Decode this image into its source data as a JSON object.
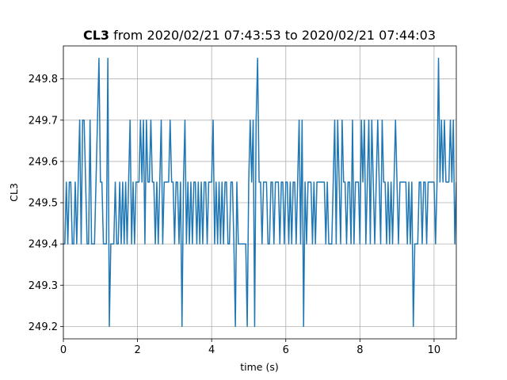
{
  "chart_data": {
    "type": "line",
    "title": {
      "bold": "CL3",
      "rest": " from 2020/02/21 07:43:53 to 2020/02/21 07:44:03"
    },
    "xlabel": "time (s)",
    "ylabel": "CL3",
    "xlim": [
      0,
      10.6
    ],
    "ylim": [
      249.17,
      249.88
    ],
    "xticks": [
      0,
      2,
      4,
      6,
      8,
      10
    ],
    "xtick_labels": [
      "0",
      "2",
      "4",
      "6",
      "8",
      "10"
    ],
    "yticks": [
      249.2,
      249.3,
      249.4,
      249.5,
      249.6,
      249.7,
      249.8
    ],
    "ytick_labels": [
      "249.2",
      "249.3",
      "249.4",
      "249.5",
      "249.6",
      "249.7",
      "249.8"
    ],
    "grid": true,
    "line_color": "#1f77b4",
    "series": [
      {
        "x": [
          0,
          0.04,
          0.08,
          0.12,
          0.16,
          0.2,
          0.24,
          0.28,
          0.32,
          0.36,
          0.4,
          0.44,
          0.48,
          0.52,
          0.56,
          0.6,
          0.64,
          0.68,
          0.72,
          0.76,
          0.8,
          0.84,
          0.88,
          0.92,
          0.96,
          1.0,
          1.04,
          1.08,
          1.12,
          1.16,
          1.2,
          1.24,
          1.28,
          1.32,
          1.36,
          1.4,
          1.44,
          1.48,
          1.52,
          1.56,
          1.6,
          1.64,
          1.68,
          1.72,
          1.76,
          1.8,
          1.84,
          1.88,
          1.92,
          1.96,
          2.0,
          2.04,
          2.08,
          2.12,
          2.16,
          2.2,
          2.24,
          2.28,
          2.32,
          2.36,
          2.4,
          2.44,
          2.48,
          2.52,
          2.56,
          2.6,
          2.64,
          2.68,
          2.72,
          2.76,
          2.8,
          2.84,
          2.88,
          2.92,
          2.96,
          3.0,
          3.04,
          3.08,
          3.12,
          3.16,
          3.2,
          3.24,
          3.28,
          3.32,
          3.36,
          3.4,
          3.44,
          3.48,
          3.52,
          3.56,
          3.6,
          3.64,
          3.68,
          3.72,
          3.76,
          3.8,
          3.84,
          3.88,
          3.92,
          3.96,
          4.0,
          4.04,
          4.08,
          4.12,
          4.16,
          4.2,
          4.24,
          4.28,
          4.32,
          4.36,
          4.4,
          4.44,
          4.48,
          4.52,
          4.56,
          4.6,
          4.64,
          4.68,
          4.72,
          4.76,
          4.8,
          4.84,
          4.88,
          4.92,
          4.96,
          5.0,
          5.04,
          5.08,
          5.12,
          5.16,
          5.2,
          5.24,
          5.28,
          5.32,
          5.36,
          5.4,
          5.44,
          5.48,
          5.52,
          5.56,
          5.6,
          5.64,
          5.68,
          5.72,
          5.76,
          5.8,
          5.84,
          5.88,
          5.92,
          5.96,
          6.0,
          6.04,
          6.08,
          6.12,
          6.16,
          6.2,
          6.24,
          6.28,
          6.32,
          6.36,
          6.4,
          6.44,
          6.48,
          6.52,
          6.56,
          6.6,
          6.64,
          6.68,
          6.72,
          6.76,
          6.8,
          6.84,
          6.88,
          6.92,
          6.96,
          7.0,
          7.04,
          7.08,
          7.12,
          7.16,
          7.2,
          7.24,
          7.28,
          7.32,
          7.36,
          7.4,
          7.44,
          7.48,
          7.52,
          7.56,
          7.6,
          7.64,
          7.68,
          7.72,
          7.76,
          7.8,
          7.84,
          7.88,
          7.92,
          7.96,
          8.0,
          8.04,
          8.08,
          8.12,
          8.16,
          8.2,
          8.24,
          8.28,
          8.32,
          8.36,
          8.4,
          8.44,
          8.48,
          8.52,
          8.56,
          8.6,
          8.64,
          8.68,
          8.72,
          8.76,
          8.8,
          8.84,
          8.88,
          8.92,
          8.96,
          9.0,
          9.04,
          9.08,
          9.12,
          9.16,
          9.2,
          9.24,
          9.28,
          9.32,
          9.36,
          9.4,
          9.44,
          9.48,
          9.52,
          9.56,
          9.6,
          9.64,
          9.68,
          9.72,
          9.76,
          9.8,
          9.84,
          9.88,
          9.92,
          9.96,
          10.0,
          10.04,
          10.08,
          10.12,
          10.16,
          10.2,
          10.24,
          10.28,
          10.32,
          10.36,
          10.4,
          10.44,
          10.48,
          10.52,
          10.56,
          10.6
        ],
        "y": [
          249.4,
          249.4,
          249.55,
          249.4,
          249.55,
          249.55,
          249.4,
          249.4,
          249.55,
          249.4,
          249.55,
          249.7,
          249.4,
          249.7,
          249.7,
          249.55,
          249.4,
          249.4,
          249.7,
          249.4,
          249.4,
          249.4,
          249.55,
          249.7,
          249.85,
          249.55,
          249.55,
          249.4,
          249.4,
          249.4,
          249.85,
          249.2,
          249.4,
          249.4,
          249.4,
          249.55,
          249.4,
          249.4,
          249.55,
          249.4,
          249.55,
          249.4,
          249.55,
          249.4,
          249.55,
          249.7,
          249.4,
          249.55,
          249.4,
          249.55,
          249.55,
          249.55,
          249.7,
          249.55,
          249.7,
          249.4,
          249.7,
          249.55,
          249.55,
          249.7,
          249.55,
          249.55,
          249.4,
          249.55,
          249.4,
          249.55,
          249.7,
          249.4,
          249.55,
          249.55,
          249.55,
          249.55,
          249.7,
          249.55,
          249.55,
          249.4,
          249.55,
          249.55,
          249.4,
          249.55,
          249.2,
          249.55,
          249.7,
          249.4,
          249.55,
          249.4,
          249.55,
          249.4,
          249.55,
          249.55,
          249.4,
          249.55,
          249.4,
          249.55,
          249.4,
          249.55,
          249.55,
          249.4,
          249.55,
          249.55,
          249.55,
          249.7,
          249.4,
          249.55,
          249.4,
          249.55,
          249.4,
          249.55,
          249.4,
          249.55,
          249.55,
          249.4,
          249.4,
          249.55,
          249.55,
          249.4,
          249.2,
          249.55,
          249.4,
          249.4,
          249.4,
          249.4,
          249.4,
          249.4,
          249.2,
          249.55,
          249.7,
          249.55,
          249.7,
          249.2,
          249.7,
          249.85,
          249.55,
          249.55,
          249.4,
          249.55,
          249.55,
          249.55,
          249.4,
          249.4,
          249.55,
          249.55,
          249.4,
          249.55,
          249.55,
          249.55,
          249.4,
          249.55,
          249.55,
          249.4,
          249.55,
          249.55,
          249.4,
          249.55,
          249.4,
          249.55,
          249.55,
          249.4,
          249.55,
          249.7,
          249.4,
          249.7,
          249.2,
          249.55,
          249.4,
          249.55,
          249.55,
          249.55,
          249.4,
          249.55,
          249.4,
          249.55,
          249.55,
          249.55,
          249.55,
          249.55,
          249.55,
          249.4,
          249.55,
          249.4,
          249.4,
          249.4,
          249.55,
          249.7,
          249.4,
          249.7,
          249.55,
          249.4,
          249.7,
          249.55,
          249.55,
          249.4,
          249.55,
          249.55,
          249.4,
          249.7,
          249.4,
          249.55,
          249.55,
          249.55,
          249.4,
          249.7,
          249.55,
          249.7,
          249.4,
          249.55,
          249.7,
          249.4,
          249.7,
          249.55,
          249.4,
          249.55,
          249.7,
          249.55,
          249.4,
          249.7,
          249.55,
          249.55,
          249.4,
          249.55,
          249.4,
          249.55,
          249.4,
          249.55,
          249.7,
          249.55,
          249.4,
          249.55,
          249.55,
          249.55,
          249.55,
          249.55,
          249.4,
          249.55,
          249.4,
          249.55,
          249.2,
          249.4,
          249.4,
          249.4,
          249.55,
          249.55,
          249.4,
          249.55,
          249.55,
          249.4,
          249.55,
          249.55,
          249.55,
          249.55,
          249.55,
          249.4,
          249.55,
          249.85,
          249.55,
          249.7,
          249.55,
          249.7,
          249.55,
          249.55,
          249.55,
          249.7,
          249.55,
          249.7,
          249.4,
          249.55
        ]
      }
    ]
  }
}
